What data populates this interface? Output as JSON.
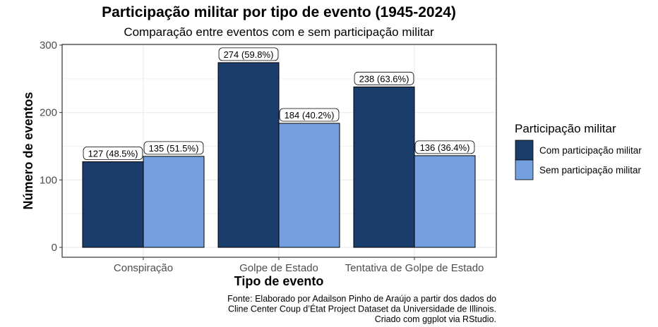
{
  "chart_data": {
    "type": "bar",
    "title": "Participação militar por tipo de evento (1945-2024)",
    "subtitle": "Comparação entre eventos com e sem participação militar",
    "xlabel": "Tipo de evento",
    "ylabel": "Número de eventos",
    "ylim": [
      0,
      300
    ],
    "yticks": [
      0,
      100,
      200,
      300
    ],
    "grid": true,
    "categories": [
      "Conspiração",
      "Golpe de Estado",
      "Tentativa de Golpe de Estado"
    ],
    "series": [
      {
        "name": "Com participação militar",
        "color": "#1b3d6b",
        "values": [
          127,
          274,
          238
        ],
        "labels": [
          "127 (48.5%)",
          "274 (59.8%)",
          "238 (63.6%)"
        ]
      },
      {
        "name": "Sem participação militar",
        "color": "#74a0e0",
        "values": [
          135,
          184,
          136
        ],
        "labels": [
          "135 (51.5%)",
          "184 (40.2%)",
          "136 (36.4%)"
        ]
      }
    ],
    "legend_title": "Participação militar",
    "legend_position": "right",
    "caption": [
      "Fonte: Elaborado por Adailson Pinho de Araújo a partir dos dados do",
      "Cline Center Coup d’État Project Dataset da Universidade de Illinois.",
      "Criado com ggplot via RStudio."
    ]
  }
}
